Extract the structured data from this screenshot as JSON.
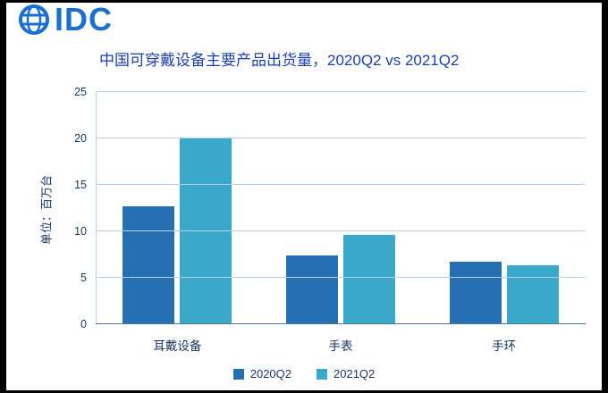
{
  "logo": {
    "text": "IDC"
  },
  "colors": {
    "brand": "#1a6fd1",
    "title": "#1c40ae",
    "axis": "#17345f",
    "grid": "#b9d0e6",
    "baseline": "#4f759e"
  },
  "chart_data": {
    "type": "bar",
    "title": "中国可穿戴设备主要产品出货量，2020Q2 vs 2021Q2",
    "xlabel": "",
    "ylabel": "单位：百万台",
    "categories": [
      "耳戴设备",
      "手表",
      "手环"
    ],
    "series": [
      {
        "name": "2020Q2",
        "color": "#2470b3",
        "values": [
          12.7,
          7.4,
          6.7
        ]
      },
      {
        "name": "2021Q2",
        "color": "#3aa9c9",
        "values": [
          20.0,
          9.6,
          6.3
        ]
      }
    ],
    "ylim": [
      0,
      25
    ],
    "yticks": [
      0,
      5,
      10,
      15,
      20,
      25
    ],
    "grid": true,
    "legend_position": "bottom"
  }
}
